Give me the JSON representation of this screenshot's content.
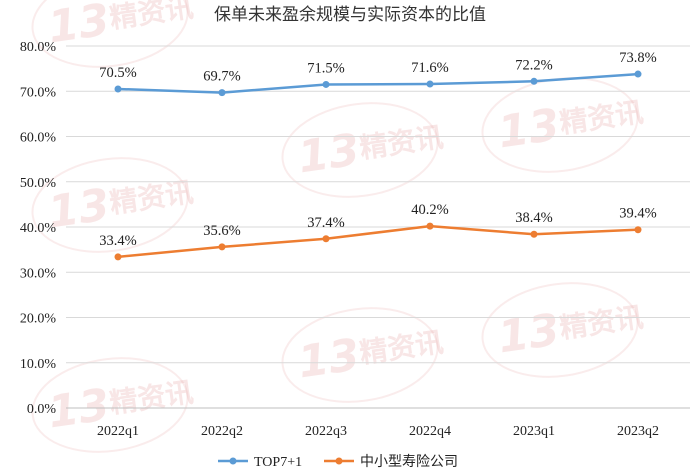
{
  "chart_data": {
    "type": "line",
    "title": "保单未来盈余规模与实际资本的比值",
    "categories": [
      "2022q1",
      "2022q2",
      "2022q3",
      "2022q4",
      "2023q1",
      "2023q2"
    ],
    "series": [
      {
        "name": "TOP7+1",
        "values": [
          70.5,
          69.7,
          71.5,
          71.6,
          72.2,
          73.8
        ],
        "labels": [
          "70.5%",
          "69.7%",
          "71.5%",
          "71.6%",
          "72.2%",
          "73.8%"
        ],
        "color": "#5b9bd5"
      },
      {
        "name": "中小型寿险公司",
        "values": [
          33.4,
          35.6,
          37.4,
          40.2,
          38.4,
          39.4
        ],
        "labels": [
          "33.4%",
          "35.6%",
          "37.4%",
          "40.2%",
          "38.4%",
          "39.4%"
        ],
        "color": "#ed7d31"
      }
    ],
    "ylim": [
      0,
      80
    ],
    "yticks": [
      0,
      10,
      20,
      30,
      40,
      50,
      60,
      70,
      80
    ],
    "ytick_labels": [
      "0.0%",
      "10.0%",
      "20.0%",
      "30.0%",
      "40.0%",
      "50.0%",
      "60.0%",
      "70.0%",
      "80.0%"
    ],
    "grid": true,
    "legend": "bottom-center",
    "watermark_text": [
      "13",
      "精资讯"
    ]
  }
}
